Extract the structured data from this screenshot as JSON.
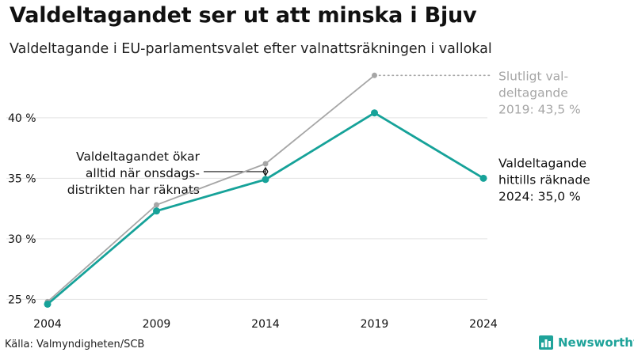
{
  "header": {
    "title": "Valdeltagandet ser ut att minska i Bjuv",
    "subtitle": "Valdeltagande i EU-parlamentsvalet efter valnattsräkningen i vallokal"
  },
  "footer": {
    "source": "Källa: Valmyndigheten/SCB",
    "brand": "Newsworthy",
    "brand_icon": "bar-chart-logo-icon"
  },
  "colors": {
    "preliminary": "#16a299",
    "final": "#a6a6a6",
    "grid": "#e3e3e3",
    "text": "#111111"
  },
  "chart_data": {
    "type": "line",
    "categories": [
      "2004",
      "2009",
      "2014",
      "2019",
      "2024"
    ],
    "ylim": [
      24.5,
      44.5
    ],
    "yticks": [
      25,
      30,
      35,
      40
    ],
    "ytick_labels": [
      "25 %",
      "30 %",
      "35 %",
      "40 %"
    ],
    "grid": true,
    "series": [
      {
        "key": "final",
        "values": [
          24.8,
          32.8,
          36.2,
          43.5,
          null
        ]
      },
      {
        "key": "preliminary",
        "values": [
          24.6,
          32.3,
          34.9,
          40.4,
          35.0
        ]
      }
    ],
    "labels": {
      "final": [
        "Slutligt val-",
        "deltagande",
        "2019: 43,5 %"
      ],
      "preliminary": [
        "Valdeltagande",
        "hittills räknade",
        "2024: 35,0 %"
      ]
    },
    "annotation": {
      "lines": [
        "Valdeltagandet ökar",
        "alltid när onsdags-",
        "distrikten har räknats"
      ]
    }
  }
}
